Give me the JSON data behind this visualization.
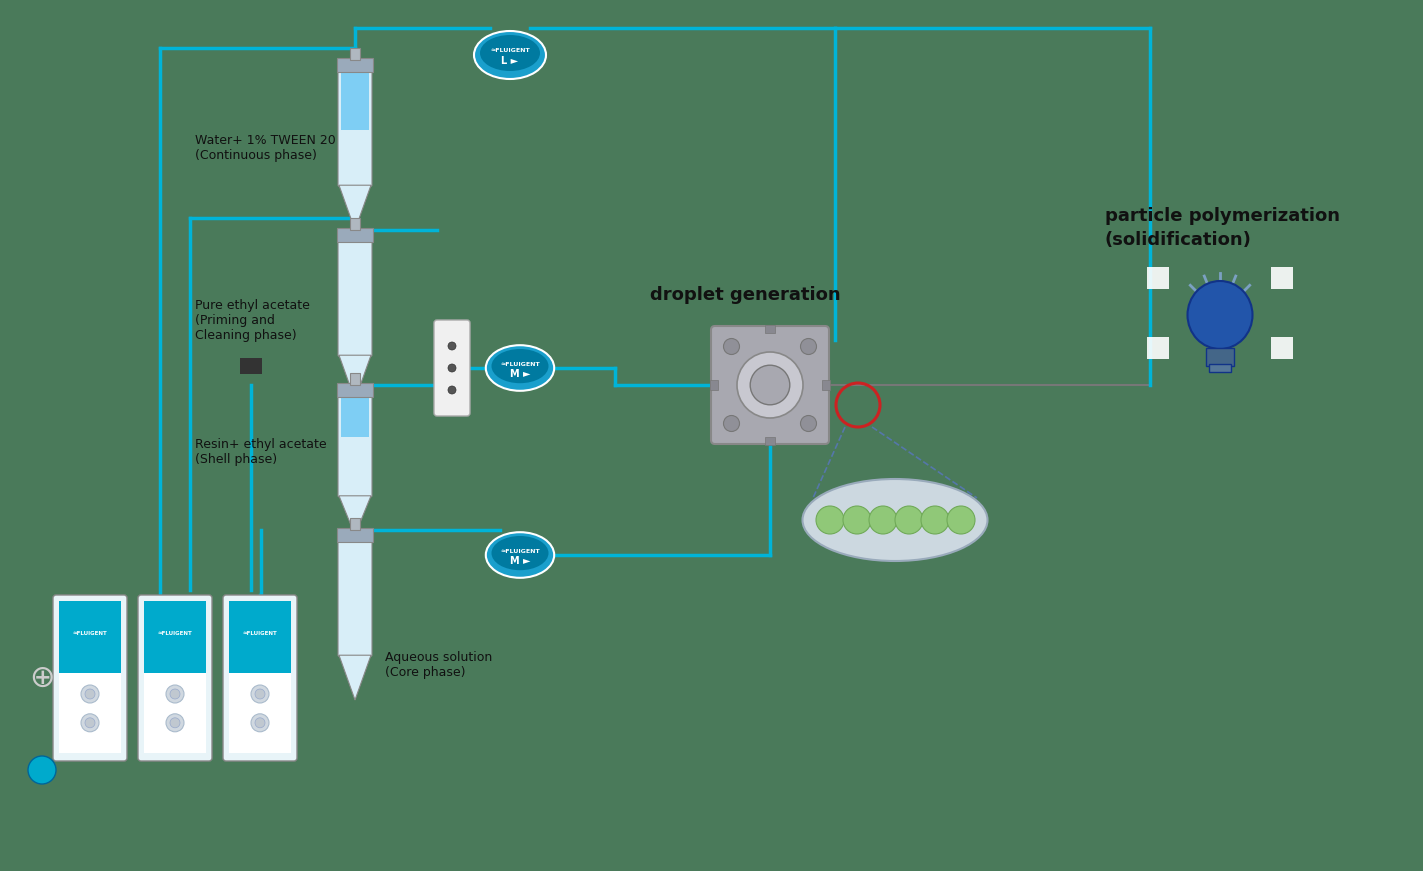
{
  "background_color": "#4a7a5a",
  "labels": {
    "continuous_phase": "Water+ 1% TWEEN 20\n(Continuous phase)",
    "priming_phase": "Pure ethyl acetate\n(Priming and\nCleaning phase)",
    "shell_phase": "Resin+ ethyl acetate\n(Shell phase)",
    "core_phase": "Aqueous solution\n(Core phase)",
    "droplet_gen": "droplet generation",
    "polymerization": "particle polymerization\n(solidification)"
  },
  "colors": {
    "background": "#4a7a5a",
    "tube_liquid_blue": "#7ecef4",
    "tube_liquid_clear": "#d8eef8",
    "line_cyan": "#00b4d8",
    "fluigent_circle": "#1a9fcc",
    "fluigent_inner": "#007aa0",
    "red_circle": "#cc2222",
    "droplet_green": "#90c878",
    "droplet_green_edge": "#70aa58",
    "droplet_oval_bg": "#ccd8e0",
    "droplet_oval_edge": "#99aabb",
    "bulb_blue": "#2255aa",
    "bulb_base": "#446688",
    "bulb_base2": "#557799",
    "bulb_ray": "#88aadd",
    "white": "#ffffff",
    "text_dark": "#111111",
    "pump_cyan": "#00aacc",
    "pump_body": "#e8f4f8",
    "chip_body": "#a8a8b0",
    "chip_ring": "#c8c8d0",
    "chip_corner": "#909098",
    "chip_port": "#888890",
    "selector_white": "#f0f0f0",
    "connector_dark": "#333333",
    "cap_color": "#9aaabb",
    "tube_body": "#d8eef8",
    "dashed_line": "#5577aa"
  }
}
